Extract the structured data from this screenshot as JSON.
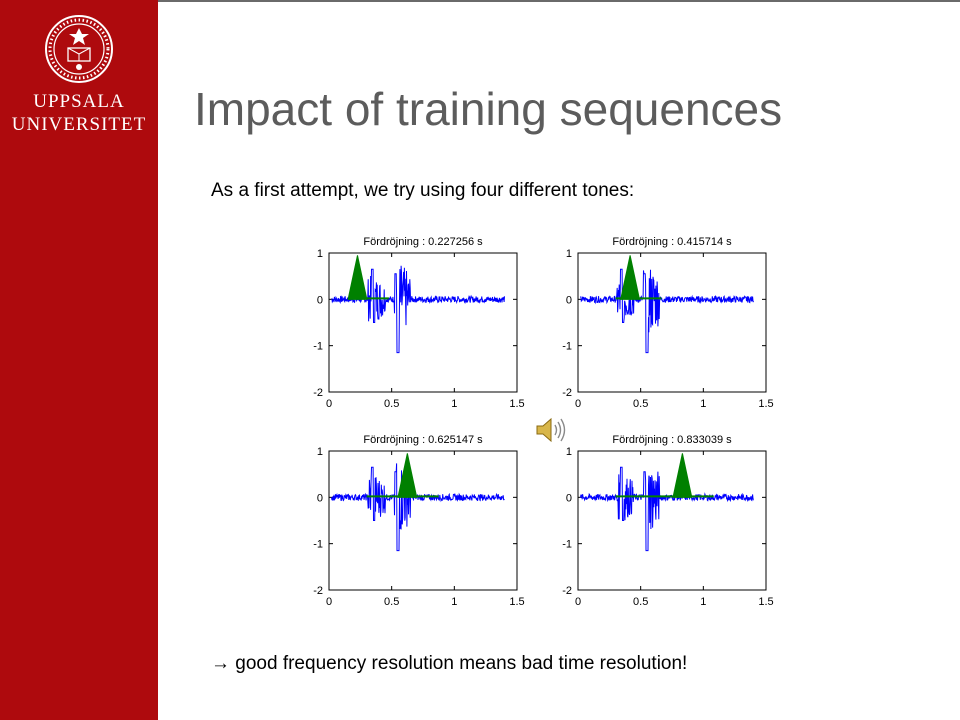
{
  "sidebar": {
    "university_line1": "UPPSALA",
    "university_line2": "UNIVERSITET",
    "brand_color": "#ae0a0d"
  },
  "slide": {
    "title": "Impact of training sequences",
    "intro": "As a first attempt, we try using four different tones:",
    "conclusion": "→ good frequency resolution means bad time resolution!"
  },
  "media": {
    "icon": "speaker-icon"
  },
  "chart_data": [
    {
      "type": "line",
      "title": "Fördröjning : 0.227256 s",
      "xlim": [
        0,
        1.5
      ],
      "ylim": [
        -2,
        1
      ],
      "xticks": [
        "0",
        "0.5",
        "1",
        "1.5"
      ],
      "yticks": [
        "1",
        "0",
        "-1",
        "-2"
      ],
      "series": [
        {
          "color": "#0000ff",
          "kind": "signal",
          "burst_times": [
            0.35,
            0.55
          ],
          "end_time": 1.4
        },
        {
          "color": "#008000",
          "kind": "correlation-peak",
          "peak_time": 0.227256,
          "peak_value": 0.95
        }
      ]
    },
    {
      "type": "line",
      "title": "Fördröjning : 0.415714 s",
      "xlim": [
        0,
        1.5
      ],
      "ylim": [
        -2,
        1
      ],
      "xticks": [
        "0",
        "0.5",
        "1",
        "1.5"
      ],
      "yticks": [
        "1",
        "0",
        "-1",
        "-2"
      ],
      "series": [
        {
          "color": "#0000ff",
          "kind": "signal",
          "burst_times": [
            0.35,
            0.55
          ],
          "end_time": 1.4
        },
        {
          "color": "#008000",
          "kind": "correlation-peak",
          "peak_time": 0.415714,
          "peak_value": 0.95
        }
      ]
    },
    {
      "type": "line",
      "title": "Fördröjning : 0.625147 s",
      "xlim": [
        0,
        1.5
      ],
      "ylim": [
        -2,
        1
      ],
      "xticks": [
        "0",
        "0.5",
        "1",
        "1.5"
      ],
      "yticks": [
        "1",
        "0",
        "-1",
        "-2"
      ],
      "series": [
        {
          "color": "#0000ff",
          "kind": "signal",
          "burst_times": [
            0.35,
            0.55
          ],
          "end_time": 1.4
        },
        {
          "color": "#008000",
          "kind": "correlation-peak",
          "peak_time": 0.625147,
          "peak_value": 0.95
        }
      ]
    },
    {
      "type": "line",
      "title": "Fördröjning : 0.833039 s",
      "xlim": [
        0,
        1.5
      ],
      "ylim": [
        -2,
        1
      ],
      "xticks": [
        "0",
        "0.5",
        "1",
        "1.5"
      ],
      "yticks": [
        "1",
        "0",
        "-1",
        "-2"
      ],
      "series": [
        {
          "color": "#0000ff",
          "kind": "signal",
          "burst_times": [
            0.35,
            0.55
          ],
          "end_time": 1.4
        },
        {
          "color": "#008000",
          "kind": "correlation-peak",
          "peak_time": 0.833039,
          "peak_value": 0.95
        }
      ]
    }
  ]
}
